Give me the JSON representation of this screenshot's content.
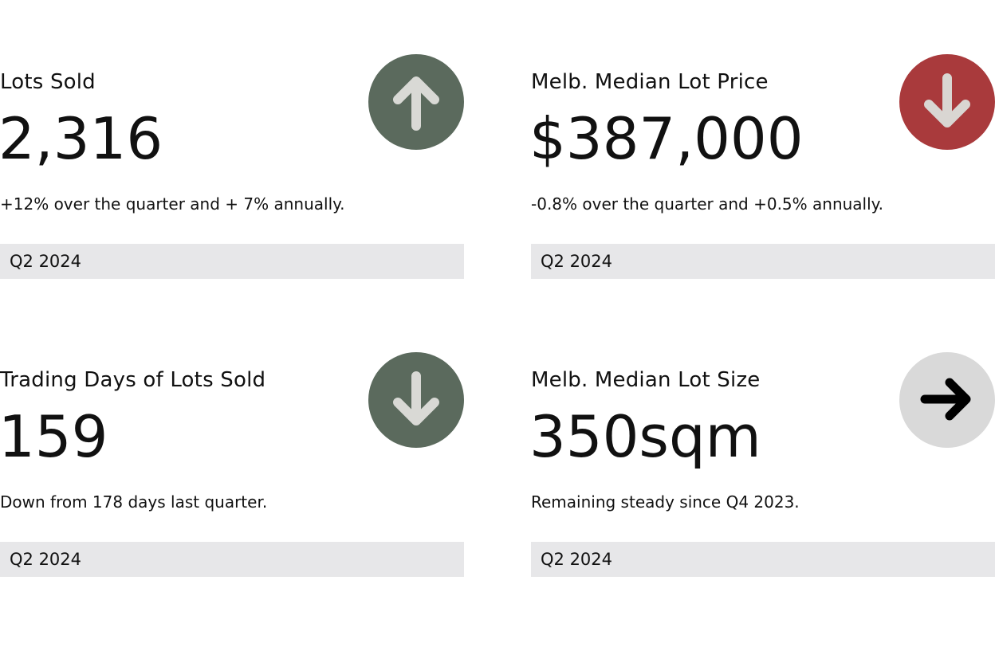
{
  "cards": [
    {
      "title": "Lots Sold",
      "value": "2,316",
      "description": "+12% over the quarter and + 7% annually.",
      "period": "Q2 2024",
      "trend_icon": "arrow-up-icon",
      "trend_color": "#5b6a5d",
      "trend_arrow_color": "#d9d9d5"
    },
    {
      "title": "Melb. Median Lot Price",
      "value": "$387,000",
      "description": "-0.8% over the quarter and +0.5% annually.",
      "period": "Q2 2024",
      "trend_icon": "arrow-down-icon",
      "trend_color": "#a93a3c",
      "trend_arrow_color": "#d9d6d2"
    },
    {
      "title": "Trading Days of Lots Sold",
      "value": "159",
      "description": "Down from 178 days last quarter.",
      "period": "Q2 2024",
      "trend_icon": "arrow-down-icon",
      "trend_color": "#5b6a5d",
      "trend_arrow_color": "#d9d9d5"
    },
    {
      "title": "Melb. Median Lot Size",
      "value": "350sqm",
      "description": "Remaining steady since Q4 2023.",
      "period": "Q2 2024",
      "trend_icon": "arrow-right-icon",
      "trend_color": "#d9d9d9",
      "trend_arrow_color": "#000000"
    }
  ]
}
